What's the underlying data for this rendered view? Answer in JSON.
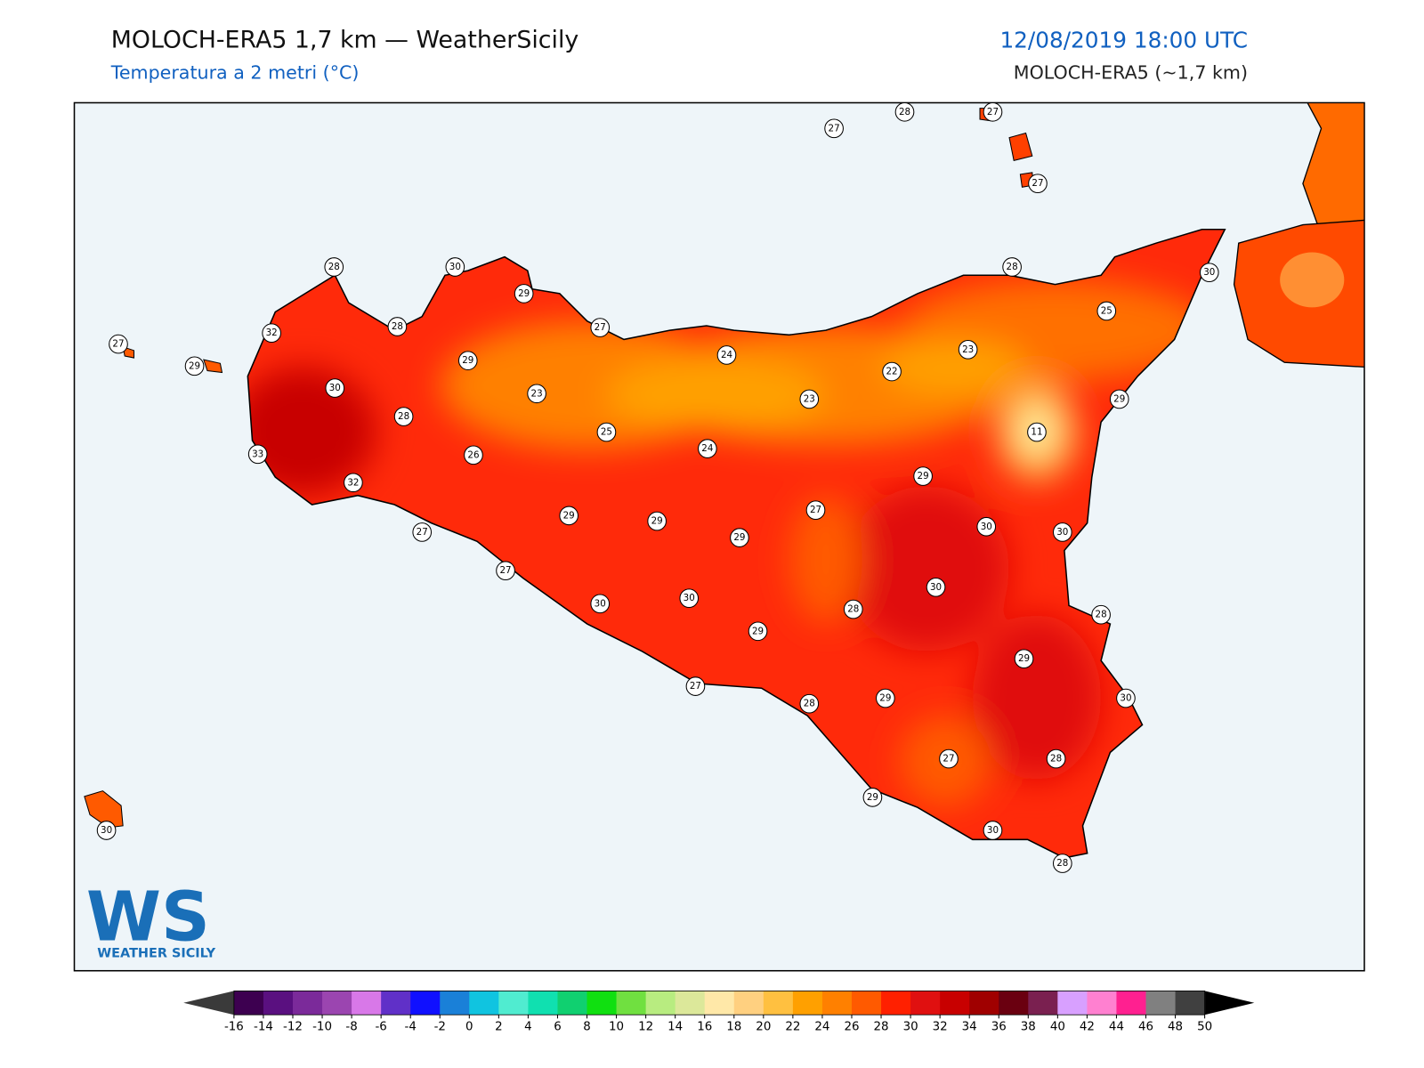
{
  "header": {
    "title": "MOLOCH-ERA5 1,7 km — WeatherSicily",
    "subtitle": "Temperatura a 2 metri (°C)",
    "date": "12/08/2019 18:00 UTC",
    "model": "MOLOCH-ERA5 (~1,7 km)"
  },
  "logo": {
    "mark": "WS",
    "name": "WEATHER SICILY"
  },
  "stations": {
    "values": [
      27,
      28,
      27,
      27,
      28,
      30,
      29,
      28,
      30,
      32,
      28,
      27,
      27,
      29,
      29,
      24,
      25,
      23,
      22,
      30,
      23,
      23,
      29,
      28,
      25,
      11,
      33,
      26,
      24,
      32,
      29,
      27,
      29,
      29,
      29,
      30,
      30,
      27,
      27,
      30,
      30,
      30,
      28,
      28,
      29,
      29,
      27,
      28,
      29,
      30,
      27,
      28,
      29,
      30,
      28,
      30
    ]
  },
  "colorbar": {
    "ticks": [
      -16,
      -14,
      -12,
      -10,
      -8,
      -6,
      -4,
      -2,
      0,
      2,
      4,
      6,
      8,
      10,
      12,
      14,
      16,
      18,
      20,
      22,
      24,
      26,
      28,
      30,
      32,
      34,
      36,
      38,
      40,
      42,
      44,
      46,
      48,
      50
    ],
    "colors": [
      "#3d0050",
      "#5a1080",
      "#7b2a9a",
      "#9b45b0",
      "#d878e8",
      "#6030c8",
      "#1010ff",
      "#1a80d8",
      "#10c4e0",
      "#50ecd0",
      "#10e0b0",
      "#10d070",
      "#10e010",
      "#70e040",
      "#b8ec80",
      "#dce89a",
      "#ffe8a8",
      "#ffd080",
      "#ffc040",
      "#ffa000",
      "#ff8000",
      "#ff5a00",
      "#ff2000",
      "#e01010",
      "#c80000",
      "#a00000",
      "#6a0010",
      "#7a2050",
      "#d8a0ff",
      "#ff80d0",
      "#ff2090",
      "#808080",
      "#404040"
    ],
    "under_color": "#3a3a3a",
    "over_color": "#000000"
  }
}
